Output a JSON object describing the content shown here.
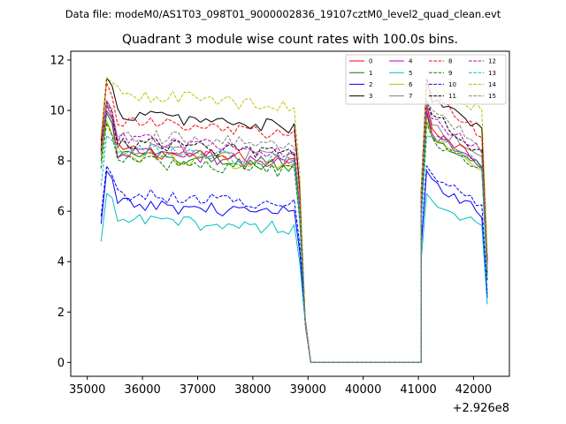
{
  "chart_data": {
    "type": "line",
    "suptitle": "Data file: modeM0/AS1T03_098T01_9000002836_19107cztM0_level2_quad_clean.evt",
    "title": "Quadrant 3 module wise count rates with 100.0s bins.",
    "xlabel": "",
    "ylabel": "",
    "x_offset_label": "+2.926e8",
    "xlim": [
      34700,
      42650
    ],
    "ylim": [
      -0.55,
      12.35
    ],
    "x_ticks": [
      35000,
      36000,
      37000,
      38000,
      39000,
      40000,
      41000,
      42000
    ],
    "y_ticks": [
      0,
      2,
      4,
      6,
      8,
      10,
      12
    ],
    "segments": [
      {
        "x_start": 35250,
        "x_step": 100,
        "count": 37
      },
      {
        "x_start": 38950,
        "x_step": 100,
        "count": 22
      },
      {
        "x_start": 41050,
        "x_step": 100,
        "count": 13
      }
    ],
    "legend_location": "upper right",
    "legend_columns": 4,
    "series": [
      {
        "name": "0",
        "color": "#ff0000",
        "linestyle": "solid",
        "level": 8.2,
        "first": 8.5,
        "peak": 10.2,
        "post_peak": 9.3
      },
      {
        "name": "1",
        "color": "#008000",
        "linestyle": "solid",
        "level": 8.0,
        "first": 8.0,
        "peak": 9.9,
        "post_peak": 8.9
      },
      {
        "name": "2",
        "color": "#0000ff",
        "linestyle": "solid",
        "level": 6.1,
        "first": 5.5,
        "peak": 7.6,
        "post_peak": 7.2
      },
      {
        "name": "3",
        "color": "#000000",
        "linestyle": "solid",
        "level": 9.6,
        "first": 8.8,
        "peak": 11.3,
        "post_peak": 10.4
      },
      {
        "name": "4",
        "color": "#bf00bf",
        "linestyle": "solid",
        "level": 8.1,
        "first": 8.3,
        "peak": 10.0,
        "post_peak": 9.1
      },
      {
        "name": "5",
        "color": "#00bfbf",
        "linestyle": "solid",
        "level": 5.5,
        "first": 4.8,
        "peak": 6.7,
        "post_peak": 6.4
      },
      {
        "name": "6",
        "color": "#bfbf00",
        "linestyle": "solid",
        "level": 8.0,
        "first": 8.1,
        "peak": 9.6,
        "post_peak": 8.9
      },
      {
        "name": "7",
        "color": "#808080",
        "linestyle": "solid",
        "level": 8.3,
        "first": 8.2,
        "peak": 10.3,
        "post_peak": 9.5
      },
      {
        "name": "8",
        "color": "#ff0000",
        "linestyle": "dashed",
        "level": 9.3,
        "first": 8.7,
        "peak": 11.1,
        "post_peak": 10.6
      },
      {
        "name": "9",
        "color": "#008000",
        "linestyle": "dashed",
        "level": 7.8,
        "first": 7.7,
        "peak": 9.5,
        "post_peak": 8.9
      },
      {
        "name": "10",
        "color": "#0000ff",
        "linestyle": "dashed",
        "level": 6.5,
        "first": 5.8,
        "peak": 7.8,
        "post_peak": 7.4
      },
      {
        "name": "11",
        "color": "#000000",
        "linestyle": "dashed",
        "level": 8.5,
        "first": 8.4,
        "peak": 10.4,
        "post_peak": 9.9
      },
      {
        "name": "12",
        "color": "#bf00bf",
        "linestyle": "dashed",
        "level": 8.6,
        "first": 8.6,
        "peak": 10.4,
        "post_peak": 9.7
      },
      {
        "name": "13",
        "color": "#00bfbf",
        "linestyle": "dashed",
        "level": 8.2,
        "first": 7.0,
        "peak": 9.0,
        "post_peak": 8.9
      },
      {
        "name": "14",
        "color": "#bfbf00",
        "linestyle": "dashed",
        "level": 10.4,
        "first": 9.0,
        "peak": 11.3,
        "post_peak": 11.0
      },
      {
        "name": "15",
        "color": "#808080",
        "linestyle": "dashed",
        "level": 8.8,
        "first": 8.5,
        "peak": 10.4,
        "post_peak": 10.1
      }
    ]
  }
}
